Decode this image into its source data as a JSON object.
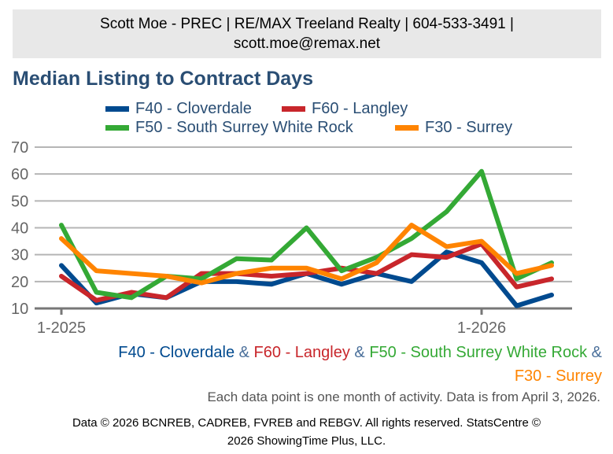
{
  "header": {
    "line1": "Scott Moe - PREC | RE/MAX Treeland Realty | 604-533-3491 |",
    "line2": "scott.moe@remax.net"
  },
  "chart_data": {
    "type": "line",
    "title": "Median Listing to Contract Days",
    "xlabel": "",
    "ylabel": "",
    "ylim": [
      10,
      70
    ],
    "yticks": [
      "10",
      "20",
      "30",
      "40",
      "50",
      "60",
      "70"
    ],
    "xtick_labels": [
      {
        "index": 0,
        "label": "1-2025"
      },
      {
        "index": 12,
        "label": "1-2026"
      }
    ],
    "x": [
      "2025-01",
      "2025-02",
      "2025-03",
      "2025-04",
      "2025-05",
      "2025-06",
      "2025-07",
      "2025-08",
      "2025-09",
      "2025-10",
      "2025-11",
      "2025-12",
      "2026-01",
      "2026-02",
      "2026-03"
    ],
    "grid": true,
    "legend_placement": "top",
    "series": [
      {
        "name": "F40 - Cloverdale",
        "color": "#004a8f",
        "values": [
          26,
          12,
          15.5,
          14,
          20,
          20,
          19,
          23,
          19,
          23,
          20,
          31,
          27,
          11,
          15
        ]
      },
      {
        "name": "F60 - Langley",
        "color": "#c8262b",
        "values": [
          22,
          13,
          16,
          14,
          23,
          23,
          22,
          23,
          25,
          23,
          30,
          29,
          34,
          18,
          21
        ]
      },
      {
        "name": "F50 - South Surrey White Rock",
        "color": "#34a935",
        "values": [
          41,
          16,
          14,
          22,
          21,
          28.5,
          28,
          40,
          24,
          29,
          36,
          46,
          61,
          21,
          27
        ]
      },
      {
        "name": "F30 - Surrey",
        "color": "#ff8400",
        "values": [
          36,
          24,
          23,
          22,
          19.5,
          23,
          25,
          25,
          21,
          27,
          41,
          33,
          35,
          23,
          26
        ]
      }
    ]
  },
  "footer": {
    "names": [
      "F40 - Cloverdale",
      "F60 - Langley",
      "F50 - South Surrey White Rock",
      "F30 - Surrey"
    ],
    "amp": "&",
    "note": "Each data point is one month of activity. Data is from April 3, 2026.",
    "copyright1": "Data © 2026 BCNREB, CADREB, FVREB and REBGV. All rights reserved. StatsCentre ©",
    "copyright2": "2026 ShowingTime Plus, LLC."
  }
}
